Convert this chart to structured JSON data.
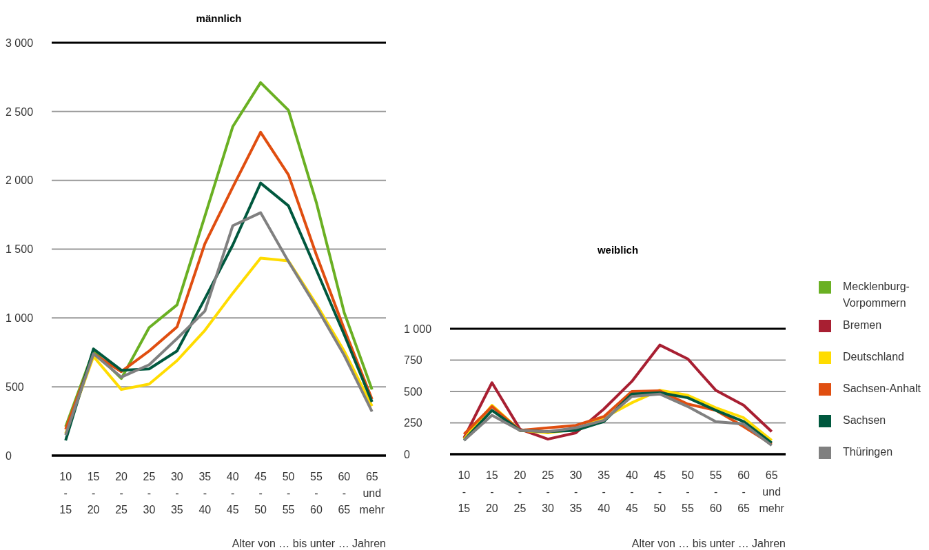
{
  "chart_data": [
    {
      "type": "line",
      "title": "männlich",
      "xlabel": "Alter von … bis unter … Jahren",
      "categories": [
        "10 - 15",
        "15 - 20",
        "20 - 25",
        "25 - 30",
        "30 - 35",
        "35 - 40",
        "40 - 45",
        "45 - 50",
        "50 - 55",
        "55 - 60",
        "60 - 65",
        "65 und mehr"
      ],
      "series": [
        {
          "color": "#6ab023",
          "values": [
            210,
            760,
            560,
            930,
            1095,
            1740,
            2390,
            2710,
            2510,
            1840,
            1040,
            480
          ]
        },
        {
          "color": "#ffdc00",
          "values": [
            160,
            720,
            480,
            520,
            690,
            910,
            1180,
            1435,
            1415,
            1100,
            760,
            360
          ]
        },
        {
          "color": "#e04e10",
          "values": [
            190,
            740,
            610,
            760,
            935,
            1540,
            1950,
            2350,
            2040,
            1460,
            920,
            410
          ]
        },
        {
          "color": "#00583e",
          "values": [
            110,
            775,
            620,
            630,
            760,
            1140,
            1530,
            1980,
            1815,
            1350,
            880,
            390
          ]
        },
        {
          "color": "#808080",
          "values": [
            150,
            740,
            570,
            660,
            850,
            1050,
            1670,
            1765,
            1410,
            1080,
            730,
            320
          ]
        }
      ],
      "ylim": [
        0,
        3000
      ],
      "yticks": [
        0,
        500,
        {
          "value": 1000,
          "label": "1 000"
        },
        {
          "value": 1500,
          "label": "1 500"
        },
        {
          "value": 2000,
          "label": "2 000"
        },
        {
          "value": 2500,
          "label": "2 500"
        },
        {
          "value": 3000,
          "label": "3 000"
        }
      ],
      "grid": "y",
      "marker": "none",
      "line_style": "solid"
    },
    {
      "type": "line",
      "title": "weiblich",
      "xlabel": "Alter von … bis unter … Jahren",
      "categories": [
        "10 - 15",
        "15 - 20",
        "20 - 25",
        "25 - 30",
        "30 - 35",
        "35 - 40",
        "40 - 45",
        "45 - 50",
        "50 - 55",
        "55 - 60",
        "60 - 65",
        "65 und mehr"
      ],
      "series": [
        {
          "name": "Mecklenburg-Vorpommern",
          "color": "#6ab023",
          "values": [
            null,
            null,
            null,
            null,
            null,
            null,
            null,
            null,
            null,
            null,
            null,
            null
          ]
        },
        {
          "name": "Bremen",
          "color": "#a81f32",
          "values": [
            130,
            570,
            200,
            120,
            170,
            360,
            580,
            870,
            760,
            510,
            390,
            180
          ]
        },
        {
          "name": "Deutschland",
          "color": "#ffdc00",
          "values": [
            120,
            390,
            190,
            170,
            200,
            290,
            410,
            510,
            470,
            370,
            290,
            110
          ]
        },
        {
          "name": "Sachsen-Anhalt",
          "color": "#e04e10",
          "values": [
            160,
            380,
            190,
            210,
            230,
            300,
            500,
            505,
            400,
            350,
            220,
            80
          ]
        },
        {
          "name": "Sachsen",
          "color": "#00583e",
          "values": [
            110,
            350,
            190,
            180,
            190,
            260,
            480,
            490,
            450,
            350,
            260,
            90
          ]
        },
        {
          "name": "Thüringen",
          "color": "#808080",
          "values": [
            110,
            310,
            190,
            180,
            210,
            270,
            460,
            480,
            380,
            260,
            240,
            70
          ]
        }
      ],
      "ylim": [
        0,
        1000
      ],
      "yticks": [
        0,
        250,
        500,
        750,
        {
          "value": 1000,
          "label": "1 000"
        }
      ],
      "grid": "y",
      "legend": "right",
      "marker": "none",
      "line_style": "solid"
    }
  ]
}
